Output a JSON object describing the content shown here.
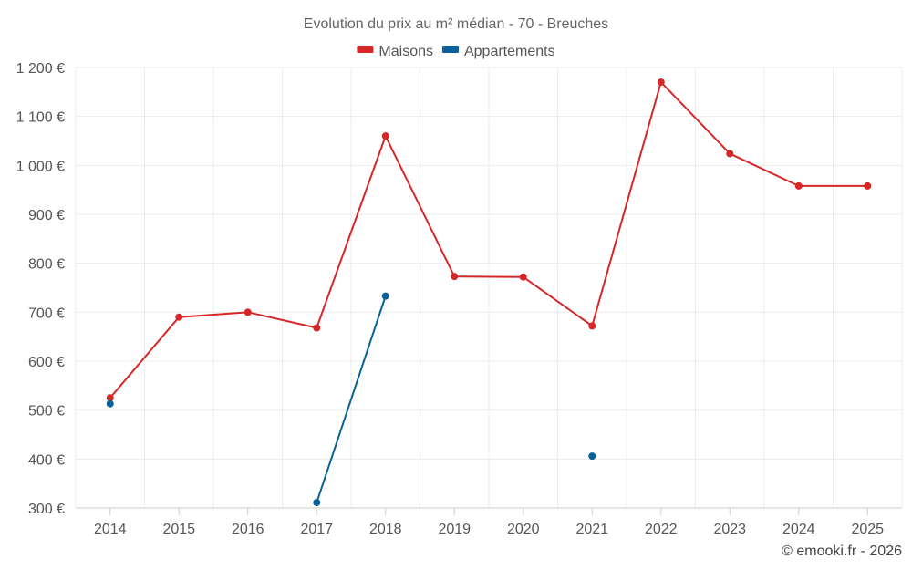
{
  "chart_data": {
    "type": "line",
    "title": "Evolution du prix au m² médian - 70 - Breuches",
    "categories": [
      "2014",
      "2015",
      "2016",
      "2017",
      "2018",
      "2019",
      "2020",
      "2021",
      "2022",
      "2023",
      "2024",
      "2025"
    ],
    "ylim": [
      300,
      1200
    ],
    "yticks": [
      300,
      400,
      500,
      600,
      700,
      800,
      900,
      1000,
      1100,
      1200
    ],
    "ytick_labels": [
      "300 €",
      "400 €",
      "500 €",
      "600 €",
      "700 €",
      "800 €",
      "900 €",
      "1 000 €",
      "1 100 €",
      "1 200 €"
    ],
    "grid": true,
    "legend_position": "top-center",
    "series": [
      {
        "name": "Maisons",
        "color": "#d62728",
        "values": [
          525,
          690,
          700,
          668,
          1060,
          773,
          772,
          672,
          1170,
          1024,
          958,
          958
        ]
      },
      {
        "name": "Appartements",
        "color": "#08619a",
        "values": [
          513,
          null,
          null,
          311,
          733,
          null,
          null,
          406,
          null,
          null,
          null,
          null
        ]
      }
    ],
    "credit": "© emooki.fr - 2026"
  }
}
